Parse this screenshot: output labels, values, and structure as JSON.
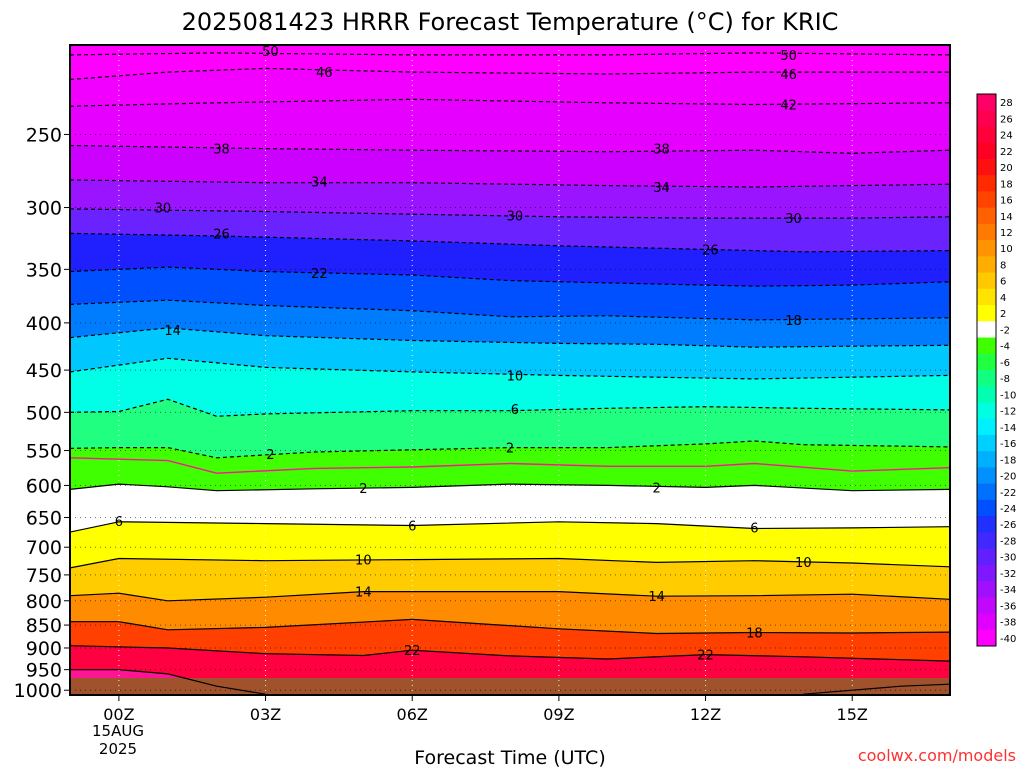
{
  "chart_data": {
    "type": "heatmap",
    "title": "2025081423 HRRR Forecast Temperature (°C) for KRIC",
    "xlabel": "Forecast Time (UTC)",
    "ylabel": "",
    "credit": "coolwx.com/models",
    "x_tick_labels": [
      "00Z",
      "03Z",
      "06Z",
      "09Z",
      "12Z",
      "15Z"
    ],
    "x_tick_hours": [
      0,
      3,
      6,
      9,
      12,
      15
    ],
    "date_label": [
      "15AUG",
      "2025"
    ],
    "xlim_hours": [
      -1,
      17
    ],
    "y_tick_labels": [
      "250",
      "300",
      "350",
      "400",
      "450",
      "500",
      "550",
      "600",
      "650",
      "700",
      "750",
      "800",
      "850",
      "900",
      "950",
      "1000"
    ],
    "ylim_hpa": [
      200,
      1012
    ],
    "y_scale": "log-pressure",
    "colorbar": {
      "labels": [
        "28",
        "26",
        "24",
        "22",
        "20",
        "18",
        "16",
        "14",
        "12",
        "10",
        "8",
        "6",
        "4",
        "2",
        "-2",
        "-4",
        "-6",
        "-8",
        "-10",
        "-12",
        "-14",
        "-16",
        "-18",
        "-20",
        "-22",
        "-24",
        "-26",
        "-28",
        "-30",
        "-32",
        "-34",
        "-36",
        "-38",
        "-40"
      ]
    },
    "fill_colors": {
      "m50": "#ff00ff",
      "m46": "#f200ff",
      "m42": "#e600ff",
      "m38": "#cc00ff",
      "m34": "#9a14ff",
      "m30": "#6a22ff",
      "m26": "#2020ff",
      "m22": "#0050ff",
      "m18": "#007dff",
      "m14": "#00c8ff",
      "m10": "#00ffe6",
      "m6": "#20ff80",
      "m2": "#40ff00",
      "p2": "#ffffff",
      "p6": "#ffff00",
      "p10": "#ffcc00",
      "p14": "#ff8c00",
      "p18": "#ff4000",
      "p22": "#ff0040",
      "p26": "#ff1493"
    },
    "contours": [
      {
        "level": -50,
        "points": [
          [
            -1,
            205
          ],
          [
            2,
            204
          ],
          [
            6,
            205
          ],
          [
            10,
            205
          ],
          [
            13,
            204
          ],
          [
            17,
            205
          ]
        ]
      },
      {
        "level": -46,
        "points": [
          [
            -1,
            218
          ],
          [
            1,
            214
          ],
          [
            3,
            212
          ],
          [
            6,
            214
          ],
          [
            10,
            215
          ],
          [
            13,
            214
          ],
          [
            17,
            214
          ]
        ]
      },
      {
        "level": -42,
        "points": [
          [
            -1,
            233
          ],
          [
            2,
            231
          ],
          [
            6,
            229
          ],
          [
            10,
            231
          ],
          [
            13,
            232
          ],
          [
            17,
            231
          ]
        ]
      },
      {
        "level": -38,
        "points": [
          [
            -1,
            257
          ],
          [
            3,
            259
          ],
          [
            6,
            260
          ],
          [
            10,
            261
          ],
          [
            13,
            260
          ],
          [
            15,
            262
          ],
          [
            17,
            260
          ]
        ]
      },
      {
        "level": -34,
        "points": [
          [
            -1,
            280
          ],
          [
            3,
            282
          ],
          [
            6,
            282
          ],
          [
            10,
            284
          ],
          [
            13,
            285
          ],
          [
            17,
            283
          ]
        ]
      },
      {
        "level": -30,
        "points": [
          [
            -1,
            301
          ],
          [
            3,
            303
          ],
          [
            6,
            305
          ],
          [
            9,
            307
          ],
          [
            12,
            308
          ],
          [
            15,
            308
          ],
          [
            17,
            307
          ]
        ]
      },
      {
        "level": -26,
        "points": [
          [
            -1,
            320
          ],
          [
            2,
            322
          ],
          [
            6,
            326
          ],
          [
            9,
            330
          ],
          [
            12,
            333
          ],
          [
            14,
            335
          ],
          [
            17,
            334
          ]
        ]
      },
      {
        "level": -22,
        "points": [
          [
            -1,
            352
          ],
          [
            1,
            348
          ],
          [
            3,
            352
          ],
          [
            6,
            355
          ],
          [
            8,
            360
          ],
          [
            10,
            362
          ],
          [
            13,
            365
          ],
          [
            15,
            364
          ],
          [
            17,
            361
          ]
        ]
      },
      {
        "level": -18,
        "points": [
          [
            -1,
            382
          ],
          [
            1,
            378
          ],
          [
            3,
            383
          ],
          [
            6,
            388
          ],
          [
            8,
            394
          ],
          [
            10,
            393
          ],
          [
            13,
            397
          ],
          [
            15,
            396
          ],
          [
            17,
            395
          ]
        ]
      },
      {
        "level": -14,
        "points": [
          [
            -1,
            415
          ],
          [
            1,
            405
          ],
          [
            3,
            413
          ],
          [
            6,
            418
          ],
          [
            9,
            421
          ],
          [
            11,
            422
          ],
          [
            13,
            425
          ],
          [
            15,
            424
          ],
          [
            17,
            423
          ]
        ]
      },
      {
        "level": -10,
        "points": [
          [
            -1,
            452
          ],
          [
            1,
            437
          ],
          [
            3,
            447
          ],
          [
            6,
            452
          ],
          [
            9,
            456
          ],
          [
            11,
            458
          ],
          [
            13,
            460
          ],
          [
            15,
            458
          ],
          [
            17,
            456
          ]
        ]
      },
      {
        "level": -6,
        "points": [
          [
            -1,
            500
          ],
          [
            0,
            499
          ],
          [
            1,
            484
          ],
          [
            2,
            505
          ],
          [
            3,
            502
          ],
          [
            6,
            498
          ],
          [
            8,
            498
          ],
          [
            10,
            495
          ],
          [
            12,
            493
          ],
          [
            14,
            495
          ],
          [
            17,
            497
          ]
        ]
      },
      {
        "level": -2,
        "points": [
          [
            -1,
            547
          ],
          [
            0,
            546
          ],
          [
            1,
            546
          ],
          [
            2,
            560
          ],
          [
            4,
            552
          ],
          [
            6,
            549
          ],
          [
            8,
            546
          ],
          [
            10,
            546
          ],
          [
            12,
            541
          ],
          [
            13,
            537
          ],
          [
            14,
            542
          ],
          [
            17,
            545
          ]
        ]
      },
      {
        "level": 2,
        "points": [
          [
            -1,
            606
          ],
          [
            0,
            598
          ],
          [
            1,
            602
          ],
          [
            2,
            608
          ],
          [
            4,
            605
          ],
          [
            6,
            603
          ],
          [
            8,
            598
          ],
          [
            10,
            600
          ],
          [
            12,
            603
          ],
          [
            13,
            600
          ],
          [
            15,
            608
          ],
          [
            17,
            606
          ]
        ]
      },
      {
        "level": 6,
        "points": [
          [
            -1,
            674
          ],
          [
            0,
            657
          ],
          [
            3,
            660
          ],
          [
            6,
            663
          ],
          [
            9,
            657
          ],
          [
            11,
            660
          ],
          [
            13,
            668
          ],
          [
            15,
            667
          ],
          [
            17,
            665
          ]
        ]
      },
      {
        "level": 10,
        "points": [
          [
            -1,
            737
          ],
          [
            0,
            720
          ],
          [
            3,
            724
          ],
          [
            6,
            722
          ],
          [
            9,
            720
          ],
          [
            11,
            727
          ],
          [
            13,
            724
          ],
          [
            15,
            728
          ],
          [
            17,
            735
          ]
        ]
      },
      {
        "level": 14,
        "points": [
          [
            -1,
            790
          ],
          [
            0,
            785
          ],
          [
            1,
            800
          ],
          [
            3,
            793
          ],
          [
            5,
            782
          ],
          [
            9,
            782
          ],
          [
            11,
            791
          ],
          [
            13,
            790
          ],
          [
            15,
            787
          ],
          [
            17,
            797
          ]
        ]
      },
      {
        "level": 18,
        "points": [
          [
            -1,
            843
          ],
          [
            0,
            843
          ],
          [
            1,
            860
          ],
          [
            3,
            855
          ],
          [
            6,
            838
          ],
          [
            9,
            858
          ],
          [
            11,
            868
          ],
          [
            13,
            866
          ],
          [
            15,
            867
          ],
          [
            17,
            865
          ]
        ]
      },
      {
        "level": 22,
        "points": [
          [
            -1,
            895
          ],
          [
            1,
            900
          ],
          [
            3,
            913
          ],
          [
            5,
            917
          ],
          [
            6,
            905
          ],
          [
            8,
            918
          ],
          [
            10,
            925
          ],
          [
            12,
            915
          ],
          [
            14,
            920
          ],
          [
            17,
            930
          ]
        ]
      },
      {
        "level": 26,
        "points": [
          [
            -1,
            950
          ],
          [
            0,
            950
          ],
          [
            1,
            960
          ],
          [
            2,
            990
          ],
          [
            3,
            1010
          ]
        ]
      },
      {
        "level": 26,
        "points": [
          [
            14,
            1010
          ],
          [
            16,
            990
          ],
          [
            17,
            985
          ]
        ]
      }
    ],
    "contour_labels": [
      {
        "text": "50",
        "hour": 3.1,
        "p": 203
      },
      {
        "text": "50",
        "hour": 13.7,
        "p": 205
      },
      {
        "text": "46",
        "hour": 4.2,
        "p": 214
      },
      {
        "text": "46",
        "hour": 13.7,
        "p": 215
      },
      {
        "text": "42",
        "hour": 13.7,
        "p": 232
      },
      {
        "text": "38",
        "hour": 2.1,
        "p": 259
      },
      {
        "text": "38",
        "hour": 11.1,
        "p": 259
      },
      {
        "text": "34",
        "hour": 4.1,
        "p": 281
      },
      {
        "text": "34",
        "hour": 11.1,
        "p": 285
      },
      {
        "text": "30",
        "hour": 0.9,
        "p": 300
      },
      {
        "text": "30",
        "hour": 8.1,
        "p": 306
      },
      {
        "text": "30",
        "hour": 13.8,
        "p": 308
      },
      {
        "text": "26",
        "hour": 2.1,
        "p": 320
      },
      {
        "text": "26",
        "hour": 12.1,
        "p": 333
      },
      {
        "text": "22",
        "hour": 4.1,
        "p": 353
      },
      {
        "text": "18",
        "hour": 13.8,
        "p": 397
      },
      {
        "text": "14",
        "hour": 1.1,
        "p": 407
      },
      {
        "text": "10",
        "hour": 8.1,
        "p": 456
      },
      {
        "text": "6",
        "hour": 8.1,
        "p": 496
      },
      {
        "text": "2",
        "hour": 3.1,
        "p": 555
      },
      {
        "text": "2",
        "hour": 8.0,
        "p": 546
      },
      {
        "text": "2",
        "hour": 5.0,
        "p": 604
      },
      {
        "text": "2",
        "hour": 11.0,
        "p": 603
      },
      {
        "text": "6",
        "hour": 0.0,
        "p": 656
      },
      {
        "text": "6",
        "hour": 6.0,
        "p": 663
      },
      {
        "text": "6",
        "hour": 13.0,
        "p": 666
      },
      {
        "text": "10",
        "hour": 5.0,
        "p": 722
      },
      {
        "text": "10",
        "hour": 14.0,
        "p": 726
      },
      {
        "text": "14",
        "hour": 5.0,
        "p": 782
      },
      {
        "text": "14",
        "hour": 11.0,
        "p": 791
      },
      {
        "text": "18",
        "hour": 13.0,
        "p": 866
      },
      {
        "text": "22",
        "hour": 6.0,
        "p": 905
      },
      {
        "text": "22",
        "hour": 12.0,
        "p": 915
      }
    ],
    "grid": true,
    "legend_placement": "right"
  }
}
